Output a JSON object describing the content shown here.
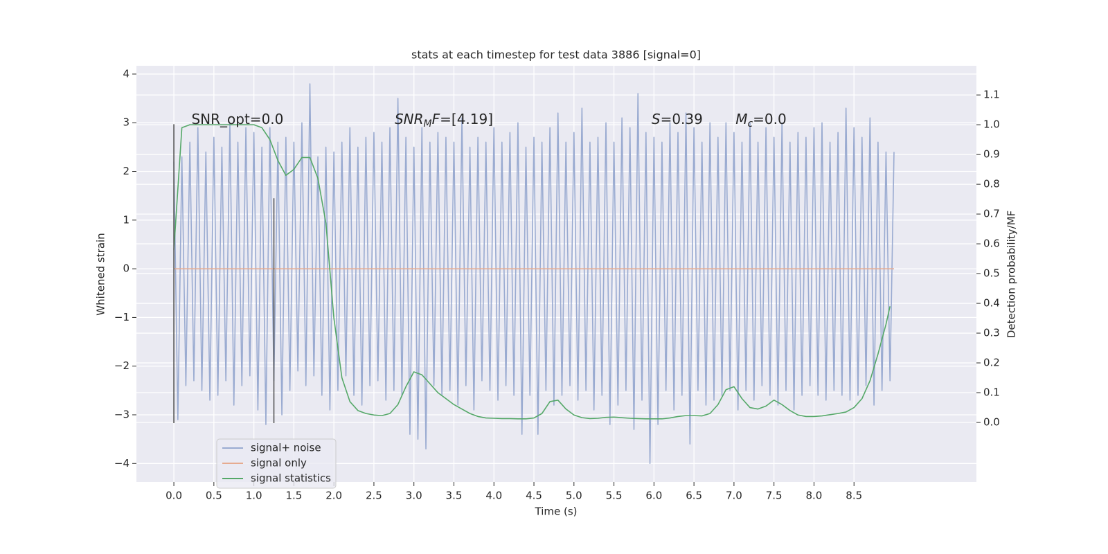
{
  "chart_data": {
    "type": "line",
    "title": "stats at each timestep for test data 3886 [signal=0]",
    "xlabel": "Time (s)",
    "ylabel": "Whitened strain",
    "y2label": "Detection probability/MF",
    "xlim": [
      -0.468,
      10.03
    ],
    "ylim": [
      -4.38,
      4.17
    ],
    "y2lim": [
      -0.2,
      1.198
    ],
    "xticks": [
      {
        "value": 0,
        "label": "0.0"
      },
      0.5,
      {
        "value": 1,
        "label": "1.0"
      },
      1.5,
      {
        "value": 2,
        "label": "2.0"
      },
      2.5,
      {
        "value": 3,
        "label": "3.0"
      },
      3.5,
      {
        "value": 4,
        "label": "4.0"
      },
      4.5,
      {
        "value": 5,
        "label": "5.0"
      },
      5.5,
      {
        "value": 6,
        "label": "6.0"
      },
      6.5,
      {
        "value": 7,
        "label": "7.0"
      },
      7.5,
      {
        "value": 8,
        "label": "8.0"
      },
      8.5
    ],
    "yticks": [
      {
        "value": -4,
        "label": "−4"
      },
      {
        "value": -3,
        "label": "−3"
      },
      {
        "value": -2,
        "label": "−2"
      },
      {
        "value": -1,
        "label": "−1"
      },
      0,
      1,
      2,
      3,
      4
    ],
    "y2ticks": [
      {
        "value": 0,
        "label": "0.0"
      },
      0.1,
      0.2,
      0.3,
      0.4,
      0.5,
      0.6,
      0.7,
      0.8,
      0.9,
      {
        "value": 1,
        "label": "1.0"
      },
      1.1
    ],
    "grid": true,
    "legend": "lower left",
    "series": [
      {
        "name": "signal+ noise",
        "color": "#9aabd1",
        "axis": "y",
        "x": [
          0,
          0.05,
          0.1,
          0.15,
          0.2,
          0.25,
          0.3,
          0.35,
          0.4,
          0.45,
          0.5,
          0.55,
          0.6,
          0.65,
          0.7,
          0.75,
          0.8,
          0.85,
          0.9,
          0.95,
          1,
          1.05,
          1.1,
          1.15,
          1.2,
          1.25,
          1.3,
          1.35,
          1.4,
          1.45,
          1.5,
          1.55,
          1.6,
          1.65,
          1.7,
          1.75,
          1.8,
          1.85,
          1.9,
          1.95,
          2,
          2.05,
          2.1,
          2.15,
          2.2,
          2.25,
          2.3,
          2.35,
          2.4,
          2.45,
          2.5,
          2.55,
          2.6,
          2.65,
          2.7,
          2.75,
          2.8,
          2.85,
          2.9,
          2.95,
          3,
          3.05,
          3.1,
          3.15,
          3.2,
          3.25,
          3.3,
          3.35,
          3.4,
          3.45,
          3.5,
          3.55,
          3.6,
          3.65,
          3.7,
          3.75,
          3.8,
          3.85,
          3.9,
          3.95,
          4,
          4.05,
          4.1,
          4.15,
          4.2,
          4.25,
          4.3,
          4.35,
          4.4,
          4.45,
          4.5,
          4.55,
          4.6,
          4.65,
          4.7,
          4.75,
          4.8,
          4.85,
          4.9,
          4.95,
          5,
          5.05,
          5.1,
          5.15,
          5.2,
          5.25,
          5.3,
          5.35,
          5.4,
          5.45,
          5.5,
          5.55,
          5.6,
          5.65,
          5.7,
          5.75,
          5.8,
          5.85,
          5.9,
          5.95,
          6,
          6.05,
          6.1,
          6.15,
          6.2,
          6.25,
          6.3,
          6.35,
          6.4,
          6.45,
          6.5,
          6.55,
          6.6,
          6.65,
          6.7,
          6.75,
          6.8,
          6.85,
          6.9,
          6.95,
          7,
          7.05,
          7.1,
          7.15,
          7.2,
          7.25,
          7.3,
          7.35,
          7.4,
          7.45,
          7.5,
          7.55,
          7.6,
          7.65,
          7.7,
          7.75,
          7.8,
          7.85,
          7.9,
          7.95,
          8,
          8.05,
          8.1,
          8.15,
          8.2,
          8.25,
          8.3,
          8.35,
          8.4,
          8.45,
          8.5,
          8.55,
          8.6,
          8.65,
          8.7,
          8.75,
          8.8,
          8.85,
          8.9,
          8.95,
          9
        ],
        "values": [
          2.2,
          -3.1,
          2.3,
          -2.4,
          2.6,
          -2.3,
          2.9,
          -2.5,
          2.4,
          -2.7,
          2.7,
          -2.6,
          2.5,
          -2.3,
          3.0,
          -2.8,
          2.6,
          -2.4,
          2.9,
          -2.2,
          2.8,
          -2.9,
          2.5,
          -3.2,
          2.9,
          -2.3,
          2.6,
          -3.0,
          2.7,
          -2.5,
          2.6,
          -2.1,
          3.0,
          -2.4,
          3.8,
          -2.2,
          2.3,
          -2.6,
          2.5,
          -2.9,
          2.4,
          -2.5,
          2.6,
          -2.2,
          2.9,
          -2.6,
          2.5,
          -2.8,
          2.7,
          -2.4,
          2.8,
          -2.3,
          2.6,
          -2.7,
          2.9,
          -2.5,
          3.5,
          -2.6,
          2.7,
          -3.4,
          2.5,
          -3.5,
          2.9,
          -3.7,
          2.6,
          -2.4,
          2.8,
          -2.6,
          2.7,
          -2.5,
          2.6,
          -2.8,
          3.1,
          -2.4,
          2.5,
          -2.9,
          2.7,
          -2.3,
          2.6,
          -2.5,
          2.9,
          -2.7,
          2.6,
          -2.4,
          2.8,
          -2.6,
          3.0,
          -3.4,
          2.5,
          -2.6,
          2.7,
          -3.4,
          2.6,
          -2.5,
          2.9,
          -2.8,
          3.2,
          -2.6,
          2.6,
          -2.4,
          2.8,
          -2.7,
          3.3,
          -2.5,
          2.6,
          -2.9,
          2.7,
          -2.6,
          3.0,
          -3.2,
          2.6,
          -2.8,
          3.1,
          -2.5,
          2.9,
          -3.3,
          3.6,
          -2.7,
          2.8,
          -4.0,
          2.7,
          -3.2,
          2.6,
          -2.5,
          3.0,
          -2.9,
          2.8,
          -2.6,
          3.2,
          -3.6,
          2.9,
          -2.5,
          2.6,
          -2.8,
          3.0,
          -2.7,
          2.7,
          -2.6,
          3.0,
          -2.5,
          2.8,
          -2.9,
          2.6,
          -2.5,
          3.0,
          -2.7,
          2.6,
          -2.4,
          2.9,
          -2.6,
          2.7,
          -2.8,
          3.0,
          -2.5,
          2.6,
          -2.9,
          2.8,
          -2.6,
          2.7,
          -2.4,
          2.9,
          -2.6,
          3.0,
          -2.7,
          2.6,
          -2.5,
          2.8,
          -2.6,
          3.3,
          -2.7,
          2.9,
          -2.6,
          2.7,
          -2.4,
          3.1,
          -2.8,
          2.6,
          -2.5,
          2.4,
          -2.3,
          2.4
        ]
      },
      {
        "name": "signal only",
        "color": "#e6ab90",
        "axis": "y",
        "x": [
          0,
          9
        ],
        "values": [
          0,
          0
        ]
      },
      {
        "name": "signal statistics",
        "color": "#55a868",
        "axis": "y2",
        "x": [
          0,
          0.1,
          0.2,
          0.3,
          0.4,
          0.5,
          0.6,
          0.7,
          0.8,
          0.9,
          1,
          1.1,
          1.2,
          1.3,
          1.4,
          1.5,
          1.6,
          1.7,
          1.8,
          1.9,
          2,
          2.1,
          2.2,
          2.3,
          2.4,
          2.5,
          2.6,
          2.7,
          2.8,
          2.9,
          3,
          3.1,
          3.2,
          3.3,
          3.4,
          3.5,
          3.6,
          3.7,
          3.8,
          3.9,
          4,
          4.1,
          4.2,
          4.3,
          4.4,
          4.5,
          4.6,
          4.7,
          4.8,
          4.9,
          5,
          5.1,
          5.2,
          5.3,
          5.4,
          5.5,
          5.6,
          5.7,
          5.8,
          5.9,
          6,
          6.1,
          6.2,
          6.3,
          6.4,
          6.5,
          6.6,
          6.7,
          6.8,
          6.9,
          7,
          7.1,
          7.2,
          7.3,
          7.4,
          7.5,
          7.6,
          7.7,
          7.8,
          7.9,
          8,
          8.1,
          8.2,
          8.3,
          8.4,
          8.5,
          8.6,
          8.7,
          8.8,
          8.9,
          8.95
        ],
        "values": [
          0.58,
          0.99,
          1.0,
          1.0,
          1.0,
          1.0,
          1.0,
          1.0,
          1.0,
          1.0,
          1.0,
          0.99,
          0.95,
          0.88,
          0.83,
          0.85,
          0.89,
          0.89,
          0.82,
          0.67,
          0.35,
          0.15,
          0.07,
          0.04,
          0.03,
          0.025,
          0.023,
          0.03,
          0.06,
          0.12,
          0.17,
          0.16,
          0.13,
          0.1,
          0.08,
          0.06,
          0.045,
          0.03,
          0.02,
          0.015,
          0.014,
          0.013,
          0.013,
          0.012,
          0.012,
          0.015,
          0.03,
          0.07,
          0.075,
          0.045,
          0.025,
          0.016,
          0.013,
          0.014,
          0.017,
          0.018,
          0.016,
          0.014,
          0.013,
          0.012,
          0.012,
          0.012,
          0.015,
          0.02,
          0.023,
          0.023,
          0.022,
          0.03,
          0.06,
          0.11,
          0.12,
          0.08,
          0.05,
          0.045,
          0.055,
          0.075,
          0.06,
          0.04,
          0.025,
          0.02,
          0.02,
          0.022,
          0.026,
          0.03,
          0.035,
          0.05,
          0.08,
          0.14,
          0.23,
          0.33,
          0.39
        ]
      }
    ],
    "vlines": [
      {
        "x": 0,
        "ymin": -3.17,
        "ymax": 2.97,
        "color": "#555555"
      },
      {
        "x": 1.25,
        "ymin": -3.17,
        "ymax": 1.45,
        "color": "#555555"
      }
    ],
    "annotations": [
      {
        "x": 0.22,
        "y": 3.06,
        "parts": [
          {
            "text": "SNR_opt=0.0"
          }
        ]
      },
      {
        "x": 2.76,
        "y": 3.06,
        "parts": [
          {
            "text": "SNR",
            "style": "italic"
          },
          {
            "text": "M",
            "style": "italic-sub"
          },
          {
            "text": "F",
            "style": "italic"
          },
          {
            "text": "=[4.19]"
          }
        ]
      },
      {
        "x": 5.97,
        "y": 3.06,
        "parts": [
          {
            "text": "S",
            "style": "italic"
          },
          {
            "text": "=0.39"
          }
        ]
      },
      {
        "x": 7.02,
        "y": 3.06,
        "parts": [
          {
            "text": "M",
            "style": "italic"
          },
          {
            "text": "c",
            "style": "italic-sub"
          },
          {
            "text": "=0.0"
          }
        ]
      }
    ]
  }
}
